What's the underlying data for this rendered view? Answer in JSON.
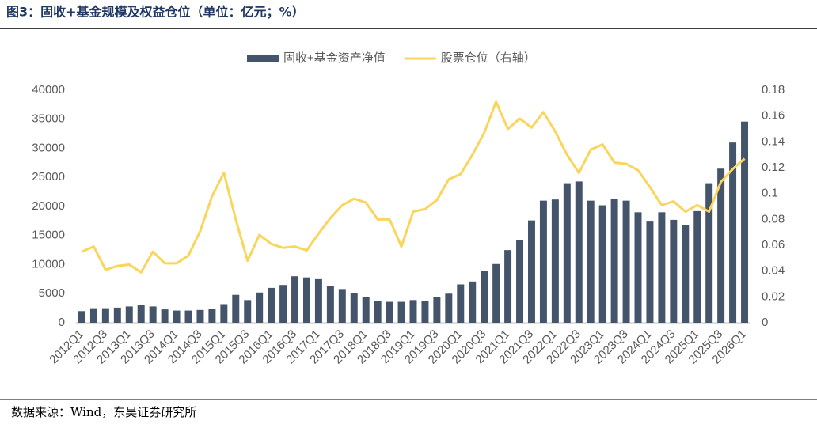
{
  "title": "图3：固收+基金规模及权益仓位（单位：亿元；%）",
  "source": "数据来源：Wind，东吴证券研究所",
  "chart_data": {
    "type": "bar-line",
    "categories": [
      "2012Q1",
      null,
      "2012Q3",
      null,
      "2013Q1",
      null,
      "2013Q3",
      null,
      "2014Q1",
      null,
      "2014Q3",
      null,
      "2015Q1",
      null,
      "2015Q3",
      null,
      "2016Q1",
      null,
      "2016Q3",
      null,
      "2017Q1",
      null,
      "2017Q3",
      null,
      "2018Q1",
      null,
      "2018Q3",
      null,
      "2019Q1",
      null,
      "2019Q3",
      null,
      "2020Q1",
      null,
      "2020Q3",
      null,
      "2021Q1",
      null,
      "2021Q3",
      null,
      "2022Q1",
      null,
      "2022Q3",
      null,
      "2023Q1",
      null,
      "2023Q3",
      null,
      "2024Q1",
      null,
      "2024Q3",
      null,
      "2025Q1",
      null,
      "2025Q3",
      null,
      "2026Q1"
    ],
    "series": [
      {
        "name": "固收+基金资产净值",
        "type": "bar",
        "color": "#44546a",
        "values": [
          2000,
          2500,
          2500,
          2600,
          2800,
          3000,
          2800,
          2300,
          2100,
          2100,
          2200,
          2400,
          3200,
          4800,
          3900,
          5200,
          6000,
          6500,
          8000,
          7800,
          7500,
          6300,
          5800,
          5100,
          4400,
          3800,
          3600,
          3600,
          3900,
          3700,
          4400,
          5000,
          6600,
          7100,
          8900,
          10100,
          12500,
          14200,
          17600,
          21000,
          21200,
          24000,
          24300,
          21000,
          20200,
          21300,
          21000,
          19000,
          17400,
          19000,
          17700,
          16800,
          19200,
          24000,
          26500,
          31000,
          34600
        ]
      },
      {
        "name": "股票仓位（右轴）",
        "type": "line",
        "axis": "y2",
        "color": "#fad55c",
        "values": [
          0.055,
          0.059,
          0.041,
          0.044,
          0.045,
          0.039,
          0.055,
          0.046,
          0.046,
          0.052,
          0.071,
          0.098,
          0.116,
          0.08,
          0.048,
          0.068,
          0.061,
          0.058,
          0.059,
          0.056,
          0.069,
          0.081,
          0.091,
          0.096,
          0.093,
          0.08,
          0.08,
          0.059,
          0.086,
          0.088,
          0.095,
          0.111,
          0.115,
          0.13,
          0.147,
          0.171,
          0.15,
          0.158,
          0.151,
          0.163,
          0.148,
          0.13,
          0.116,
          0.134,
          0.138,
          0.124,
          0.123,
          0.118,
          0.105,
          0.091,
          0.094,
          0.086,
          0.091,
          0.086,
          0.109,
          0.119,
          0.127
        ]
      }
    ],
    "ylim": [
      0,
      40000
    ],
    "yticks": [
      0,
      5000,
      10000,
      15000,
      20000,
      25000,
      30000,
      35000,
      40000
    ],
    "y2lim": [
      0,
      0.18
    ],
    "y2ticks": [
      0,
      0.02,
      0.04,
      0.06,
      0.08,
      0.1,
      0.12,
      0.14,
      0.16,
      0.18
    ],
    "legend": "top"
  }
}
